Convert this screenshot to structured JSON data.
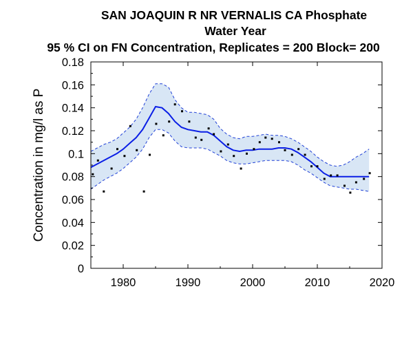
{
  "chart_data": {
    "type": "line",
    "title": "SAN JOAQUIN R NR VERNALIS CA   Phosphate",
    "subtitle_line2": "Water Year",
    "subtitle_line3": "95 % CI on FN Concentration, Replicates = 200 Block= 200",
    "xlabel": "",
    "ylabel": "Concentration in mg/l as P",
    "xlim": [
      1975,
      2020
    ],
    "ylim": [
      0,
      0.18
    ],
    "x_ticks": [
      1980,
      1990,
      2000,
      2010,
      2020
    ],
    "x_tick_labels": [
      "1980",
      "1990",
      "2000",
      "2010",
      "2020"
    ],
    "y_ticks": [
      0,
      0.02,
      0.04,
      0.06,
      0.08,
      0.1,
      0.12,
      0.14,
      0.16,
      0.18
    ],
    "y_tick_labels": [
      "0",
      "0.02",
      "0.04",
      "0.06",
      "0.08",
      "0.1",
      "0.12",
      "0.14",
      "0.16",
      "0.18"
    ],
    "grid": false,
    "colors": {
      "line": "#0a1ee6",
      "band_fill": "#d8e6f5",
      "band_edge": "#1f3fd6",
      "points": "#000000"
    },
    "series": [
      {
        "role": "fn-concentration",
        "x": [
          1975,
          1976,
          1977,
          1978,
          1979,
          1980,
          1981,
          1982,
          1983,
          1984,
          1985,
          1986,
          1987,
          1988,
          1989,
          1990,
          1991,
          1992,
          1993,
          1994,
          1995,
          1996,
          1997,
          1998,
          1999,
          2000,
          2001,
          2002,
          2003,
          2004,
          2005,
          2006,
          2007,
          2008,
          2009,
          2010,
          2011,
          2012,
          2013,
          2014,
          2015,
          2016,
          2017,
          2018
        ],
        "values": [
          0.088,
          0.091,
          0.094,
          0.097,
          0.1,
          0.104,
          0.109,
          0.114,
          0.121,
          0.131,
          0.141,
          0.14,
          0.135,
          0.128,
          0.123,
          0.121,
          0.12,
          0.119,
          0.119,
          0.116,
          0.111,
          0.106,
          0.103,
          0.102,
          0.103,
          0.103,
          0.104,
          0.104,
          0.104,
          0.105,
          0.105,
          0.104,
          0.101,
          0.097,
          0.093,
          0.088,
          0.083,
          0.08,
          0.08,
          0.08,
          0.08,
          0.08,
          0.08,
          0.08
        ]
      },
      {
        "role": "ci-upper",
        "x": [
          1975,
          1976,
          1977,
          1978,
          1979,
          1980,
          1981,
          1982,
          1983,
          1984,
          1985,
          1986,
          1987,
          1988,
          1989,
          1990,
          1991,
          1992,
          1993,
          1994,
          1995,
          1996,
          1997,
          1998,
          1999,
          2000,
          2001,
          2002,
          2003,
          2004,
          2005,
          2006,
          2007,
          2008,
          2009,
          2010,
          2011,
          2012,
          2013,
          2014,
          2015,
          2016,
          2017,
          2018
        ],
        "values": [
          0.102,
          0.105,
          0.108,
          0.11,
          0.113,
          0.118,
          0.123,
          0.13,
          0.14,
          0.152,
          0.161,
          0.161,
          0.158,
          0.147,
          0.14,
          0.136,
          0.136,
          0.135,
          0.134,
          0.13,
          0.122,
          0.117,
          0.114,
          0.113,
          0.115,
          0.115,
          0.116,
          0.117,
          0.116,
          0.116,
          0.115,
          0.113,
          0.11,
          0.106,
          0.102,
          0.097,
          0.093,
          0.09,
          0.089,
          0.09,
          0.093,
          0.097,
          0.1,
          0.104
        ]
      },
      {
        "role": "ci-lower",
        "x": [
          1975,
          1976,
          1977,
          1978,
          1979,
          1980,
          1981,
          1982,
          1983,
          1984,
          1985,
          1986,
          1987,
          1988,
          1989,
          1990,
          1991,
          1992,
          1993,
          1994,
          1995,
          1996,
          1997,
          1998,
          1999,
          2000,
          2001,
          2002,
          2003,
          2004,
          2005,
          2006,
          2007,
          2008,
          2009,
          2010,
          2011,
          2012,
          2013,
          2014,
          2015,
          2016,
          2017,
          2018
        ],
        "values": [
          0.069,
          0.073,
          0.077,
          0.08,
          0.083,
          0.087,
          0.092,
          0.097,
          0.104,
          0.114,
          0.121,
          0.121,
          0.118,
          0.111,
          0.106,
          0.105,
          0.105,
          0.105,
          0.104,
          0.101,
          0.098,
          0.094,
          0.092,
          0.091,
          0.091,
          0.092,
          0.093,
          0.094,
          0.094,
          0.094,
          0.094,
          0.093,
          0.09,
          0.086,
          0.083,
          0.079,
          0.075,
          0.072,
          0.071,
          0.07,
          0.069,
          0.069,
          0.068,
          0.067
        ]
      }
    ],
    "points": [
      [
        1975.3,
        0.082
      ],
      [
        1976.1,
        0.094
      ],
      [
        1977.0,
        0.067
      ],
      [
        1978.2,
        0.087
      ],
      [
        1979.1,
        0.104
      ],
      [
        1980.2,
        0.098
      ],
      [
        1981.1,
        0.124
      ],
      [
        1982.1,
        0.103
      ],
      [
        1983.2,
        0.067
      ],
      [
        1984.1,
        0.099
      ],
      [
        1985.1,
        0.126
      ],
      [
        1986.2,
        0.116
      ],
      [
        1987.1,
        0.128
      ],
      [
        1988.0,
        0.143
      ],
      [
        1989.1,
        0.137
      ],
      [
        1990.2,
        0.128
      ],
      [
        1991.2,
        0.114
      ],
      [
        1992.1,
        0.112
      ],
      [
        1993.2,
        0.122
      ],
      [
        1994.0,
        0.117
      ],
      [
        1995.1,
        0.102
      ],
      [
        1996.2,
        0.108
      ],
      [
        1997.1,
        0.098
      ],
      [
        1998.2,
        0.087
      ],
      [
        1999.1,
        0.1
      ],
      [
        2000.2,
        0.104
      ],
      [
        2001.1,
        0.11
      ],
      [
        2002.0,
        0.114
      ],
      [
        2003.0,
        0.113
      ],
      [
        2004.1,
        0.11
      ],
      [
        2005.0,
        0.103
      ],
      [
        2006.1,
        0.099
      ],
      [
        2007.1,
        0.104
      ],
      [
        2008.1,
        0.099
      ],
      [
        2009.1,
        0.089
      ],
      [
        2010.0,
        0.089
      ],
      [
        2011.1,
        0.078
      ],
      [
        2012.1,
        0.081
      ],
      [
        2013.1,
        0.081
      ],
      [
        2014.2,
        0.072
      ],
      [
        2015.1,
        0.066
      ],
      [
        2016.0,
        0.075
      ],
      [
        2017.2,
        0.078
      ],
      [
        2018.1,
        0.083
      ]
    ]
  }
}
